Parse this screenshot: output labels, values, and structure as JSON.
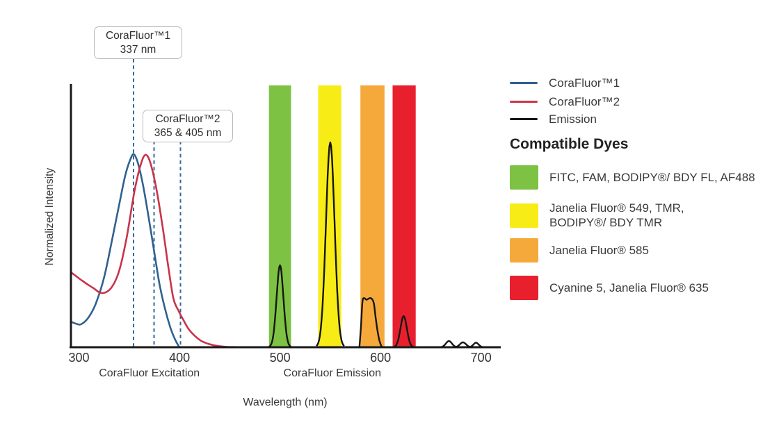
{
  "figure": {
    "y_axis_label": "Normalized Intensity",
    "x_axis_label": "Wavelength (nm)"
  },
  "legend": {
    "items": [
      {
        "label": "CoraFluor™1",
        "color": "#2F618F"
      },
      {
        "label": "CoraFluor™2",
        "color": "#CA3349"
      },
      {
        "label": "Emission",
        "color": "#161616"
      }
    ]
  },
  "compatible_dyes": {
    "title": "Compatible Dyes",
    "items": [
      {
        "color": "#7DC242",
        "label": "FITC, FAM, BODIPY®/ BDY FL, AF488"
      },
      {
        "color": "#F8EC16",
        "label": "Janelia Fluor® 549, TMR,\nBODIPY®/ BDY TMR"
      },
      {
        "color": "#F6A93B",
        "label": "Janelia Fluor® 585"
      },
      {
        "color": "#E8202E",
        "label": "Cyanine 5, Janelia Fluor® 635"
      }
    ]
  },
  "chart_data": {
    "type": "line",
    "title": "",
    "xlabel": "Wavelength (nm)",
    "ylabel": "Normalized Intensity",
    "x_ticks": [
      300,
      400,
      500,
      600,
      700
    ],
    "x_range_nm": [
      291,
      719
    ],
    "ylim": [
      0,
      1.05
    ],
    "grid": false,
    "annotation_line_color": "#33689B",
    "x_section_labels": [
      {
        "text": "CoraFluor Excitation",
        "center_nm": 370
      },
      {
        "text": "CoraFluor Emission",
        "center_nm": 552
      }
    ],
    "annotations": [
      {
        "line1": "CoraFluor™1",
        "line2": "337 nm",
        "marker_lines_nm": [
          354.3
        ]
      },
      {
        "line1": "CoraFluor™2",
        "line2": "365 & 405 nm",
        "marker_lines_nm": [
          374.7,
          401
        ]
      }
    ],
    "bands": [
      {
        "name": "green",
        "nm": [
          489,
          511
        ],
        "color": "#7DC242"
      },
      {
        "name": "yellow",
        "nm": [
          538,
          561
        ],
        "color": "#F8EC16"
      },
      {
        "name": "orange",
        "nm": [
          580,
          604
        ],
        "color": "#F6A93B"
      },
      {
        "name": "red",
        "nm": [
          612,
          635
        ],
        "color": "#E8202E"
      }
    ],
    "series": [
      {
        "name": "CoraFluor™1",
        "color": "#2F618F",
        "points": [
          [
            292,
            0.125
          ],
          [
            297,
            0.115
          ],
          [
            302,
            0.112
          ],
          [
            309,
            0.142
          ],
          [
            316.5,
            0.21
          ],
          [
            325,
            0.34
          ],
          [
            333,
            0.525
          ],
          [
            340,
            0.695
          ],
          [
            346,
            0.837
          ],
          [
            351,
            0.915
          ],
          [
            354.6,
            0.942
          ],
          [
            358.7,
            0.898
          ],
          [
            363.5,
            0.797
          ],
          [
            369,
            0.644
          ],
          [
            374.6,
            0.475
          ],
          [
            380,
            0.312
          ],
          [
            385.7,
            0.186
          ],
          [
            391,
            0.095
          ],
          [
            395.3,
            0.041
          ],
          [
            399.5,
            0.003
          ]
        ]
      },
      {
        "name": "CoraFluor™2",
        "color": "#CA3349",
        "points": [
          [
            292,
            0.366
          ],
          [
            304,
            0.322
          ],
          [
            314.5,
            0.288
          ],
          [
            322.8,
            0.264
          ],
          [
            331.8,
            0.288
          ],
          [
            340,
            0.373
          ],
          [
            347.7,
            0.542
          ],
          [
            355.3,
            0.763
          ],
          [
            361.5,
            0.892
          ],
          [
            366.3,
            0.939
          ],
          [
            371.2,
            0.898
          ],
          [
            377.4,
            0.763
          ],
          [
            383.6,
            0.576
          ],
          [
            389,
            0.39
          ],
          [
            394,
            0.237
          ],
          [
            399.3,
            0.176
          ],
          [
            404.3,
            0.129
          ],
          [
            409.2,
            0.088
          ],
          [
            414.7,
            0.058
          ],
          [
            421.6,
            0.031
          ],
          [
            428.5,
            0.017
          ],
          [
            436.8,
            0.007
          ],
          [
            446.4,
            0.002
          ],
          [
            454.8,
            0.001
          ],
          [
            460,
            0
          ]
        ]
      }
    ],
    "emission": {
      "name": "Emission",
      "color": "#161616",
      "peaks": [
        {
          "shape": "gauss",
          "center_nm": 500,
          "height": 0.4,
          "sigma_nm": 3.4
        },
        {
          "shape": "gauss",
          "center_nm": 550,
          "height": 1.0,
          "sigma_nm": 4.3
        },
        {
          "shape": "flat",
          "points": [
            [
              579,
              0
            ],
            [
              580.5,
              0.1
            ],
            [
              582,
              0.22
            ],
            [
              583.5,
              0.24
            ],
            [
              586,
              0.232
            ],
            [
              588,
              0.237
            ],
            [
              590,
              0.24
            ],
            [
              592,
              0.232
            ],
            [
              593.5,
              0.21
            ],
            [
              595,
              0.15
            ],
            [
              597,
              0.08
            ],
            [
              599,
              0.03
            ],
            [
              601,
              0.003
            ]
          ]
        },
        {
          "shape": "gauss",
          "center_nm": 623,
          "height": 0.152,
          "sigma_nm": 3.2
        },
        {
          "shape": "gauss",
          "center_nm": 668,
          "height": 0.03,
          "sigma_nm": 3.0
        },
        {
          "shape": "gauss",
          "center_nm": 682,
          "height": 0.024,
          "sigma_nm": 3.0
        },
        {
          "shape": "gauss",
          "center_nm": 695,
          "height": 0.022,
          "sigma_nm": 2.6
        }
      ]
    }
  }
}
